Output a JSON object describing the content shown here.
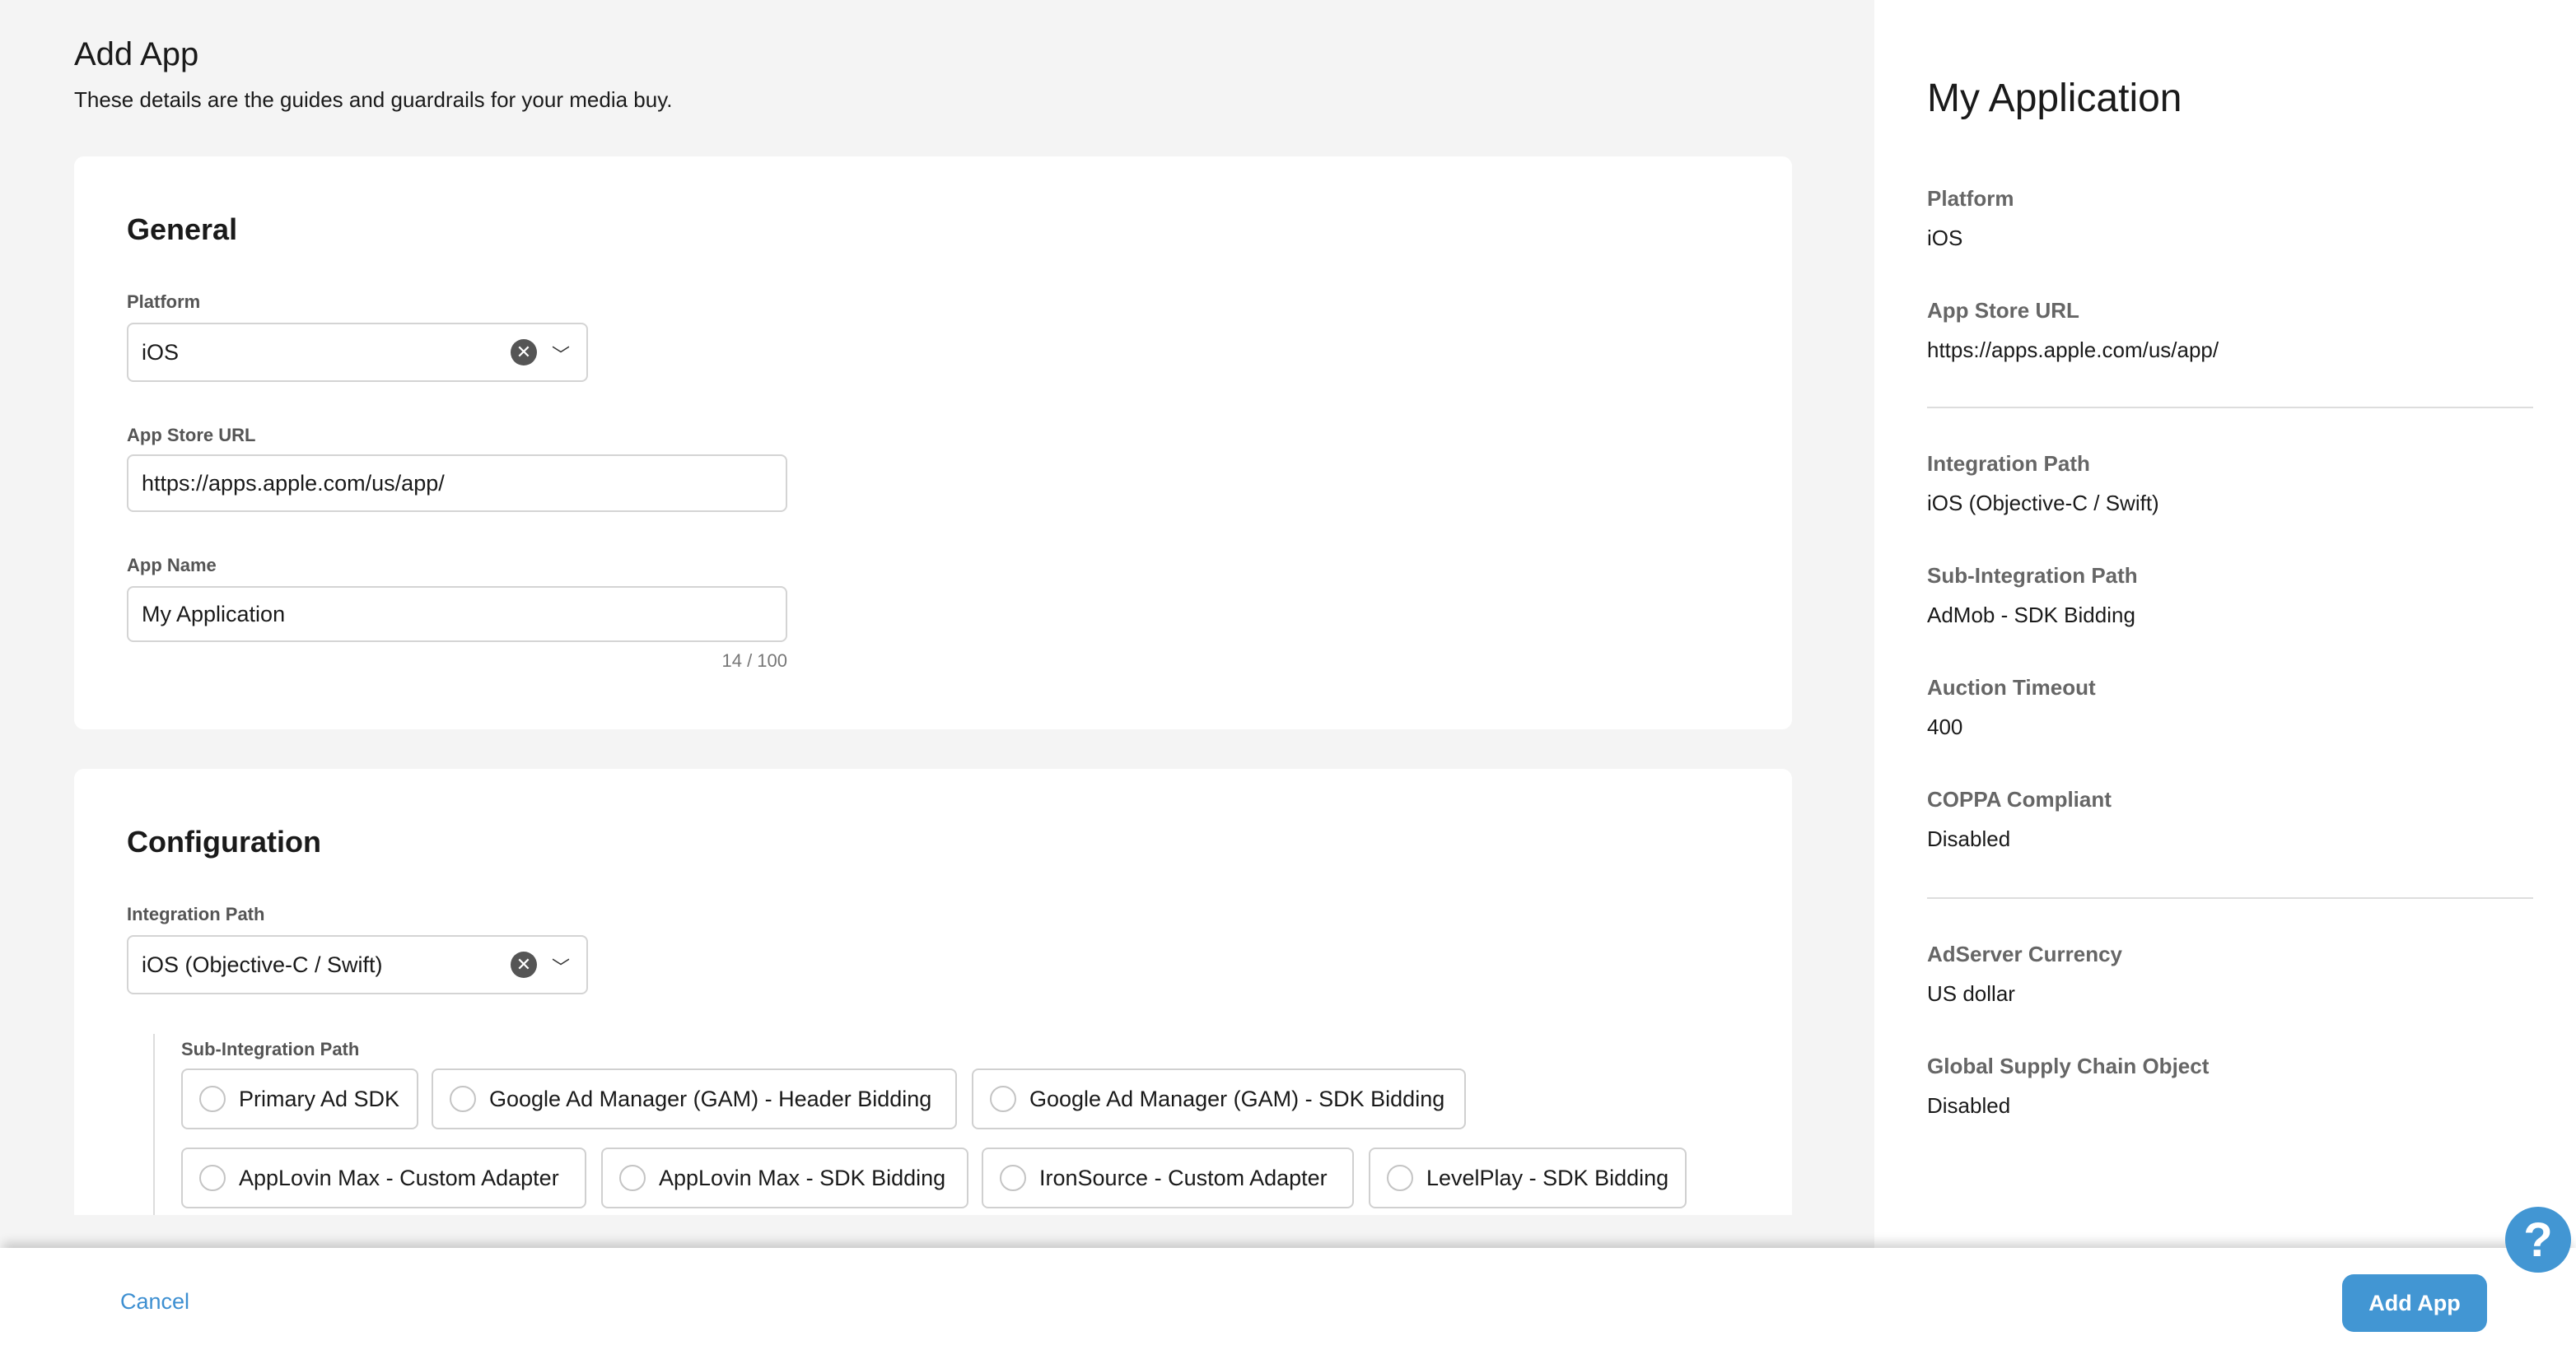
{
  "header": {
    "title": "Add App",
    "subtitle": "These details are the guides and guardrails for your media buy."
  },
  "general": {
    "heading": "General",
    "platform_label": "Platform",
    "platform_value": "iOS",
    "url_label": "App Store URL",
    "url_value": "https://apps.apple.com/us/app/",
    "name_label": "App Name",
    "name_value": "My Application",
    "name_counter": "14 / 100"
  },
  "configuration": {
    "heading": "Configuration",
    "integration_label": "Integration Path",
    "integration_value": "iOS (Objective-C / Swift)",
    "sub_label": "Sub-Integration Path",
    "sub_options": [
      "Primary Ad SDK",
      "Google Ad Manager (GAM) - Header Bidding",
      "Google Ad Manager (GAM) - SDK Bidding",
      "AppLovin Max - Custom Adapter",
      "AppLovin Max - SDK Bidding",
      "IronSource - Custom Adapter",
      "LevelPlay - SDK Bidding"
    ]
  },
  "summary": {
    "title": "My Application",
    "items": [
      {
        "label": "Platform",
        "value": "iOS"
      },
      {
        "label": "App Store URL",
        "value": "https://apps.apple.com/us/app/"
      },
      {
        "label": "Integration Path",
        "value": "iOS (Objective-C / Swift)"
      },
      {
        "label": "Sub-Integration Path",
        "value": "AdMob - SDK Bidding"
      },
      {
        "label": "Auction Timeout",
        "value": "400"
      },
      {
        "label": "COPPA Compliant",
        "value": "Disabled"
      },
      {
        "label": "AdServer Currency",
        "value": "US dollar"
      },
      {
        "label": "Global Supply Chain Object",
        "value": "Disabled"
      }
    ]
  },
  "footer": {
    "cancel": "Cancel",
    "submit": "Add App",
    "help": "?"
  },
  "colors": {
    "accent": "#4296d3",
    "link": "#3d8fd1"
  }
}
